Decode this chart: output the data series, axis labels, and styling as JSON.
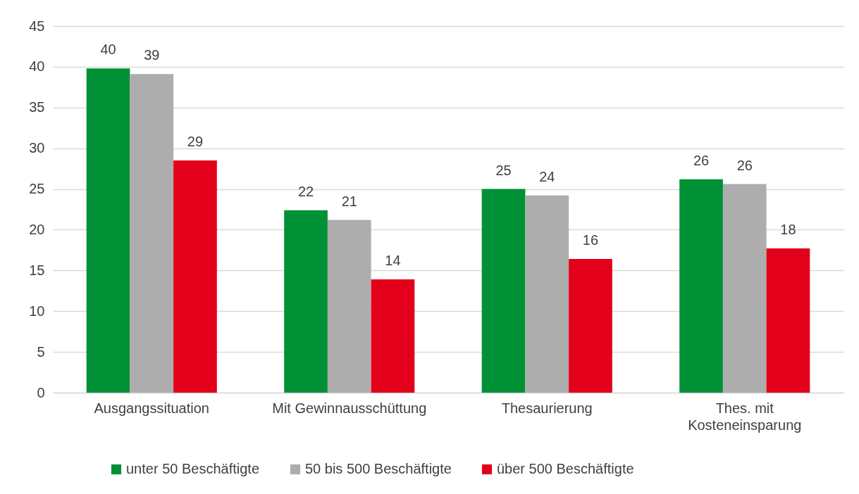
{
  "chart_data": {
    "type": "bar",
    "categories": [
      "Ausgangssituation",
      "Mit Gewinnausschüttung",
      "Thesaurierung",
      "Thes. mit Kosteneinsparung"
    ],
    "series": [
      {
        "name": "unter 50 Beschäftigte",
        "color": "#009036",
        "values": [
          39.8,
          22.4,
          25.0,
          26.2
        ],
        "value_labels": [
          "40",
          "22",
          "25",
          "26"
        ]
      },
      {
        "name": "50 bis 500 Beschäftigte",
        "color": "#adadad",
        "values": [
          39.1,
          21.2,
          24.2,
          25.6
        ],
        "value_labels": [
          "39",
          "21",
          "24",
          "26"
        ]
      },
      {
        "name": "über 500 Beschäftigte",
        "color": "#e2001a",
        "values": [
          28.5,
          13.9,
          16.4,
          17.7
        ],
        "value_labels": [
          "29",
          "14",
          "16",
          "18"
        ]
      }
    ],
    "ylim": [
      0,
      45
    ],
    "yticks": [
      0,
      5,
      10,
      15,
      20,
      25,
      30,
      35,
      40,
      45
    ],
    "grid": "y",
    "legend": "bottom"
  }
}
